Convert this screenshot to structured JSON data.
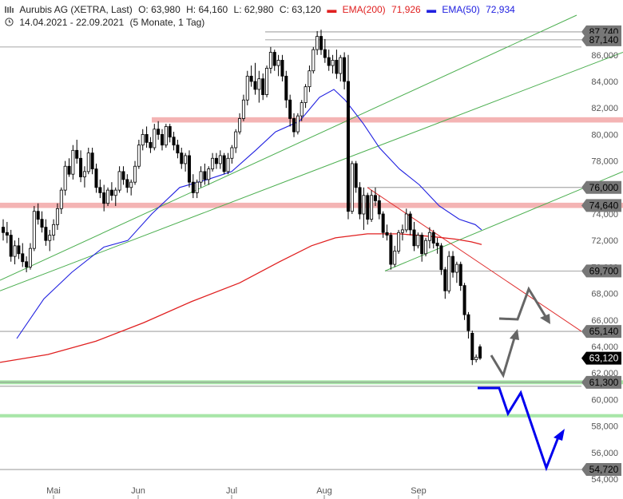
{
  "header": {
    "chart_icon": "candlestick-icon",
    "title": "Aurubis AG (XETRA, Last)",
    "open": "O: 63,980",
    "high": "H: 64,160",
    "low": "L: 62,980",
    "close": "C: 63,120",
    "ema200_label": "EMA(200)",
    "ema200_value": "71,926",
    "ema50_label": "EMA(50)",
    "ema50_value": "72,934",
    "clock_icon": "clock-icon",
    "range": "14.04.2021 - 22.09.2021",
    "period": "(5 Monate, 1 Tag)"
  },
  "colors": {
    "ema200": "#e02020",
    "ema50": "#2020e0",
    "support_zone": "#f4b4b4",
    "support_green": "#a8e6a8",
    "trend_green": "#4caf50",
    "scenario_blue": "#0000ee",
    "scenario_gray": "#666666"
  },
  "chart_data": {
    "type": "candlestick",
    "x_axis_labels": [
      "Mai",
      "Jun",
      "Jul",
      "Aug",
      "Sep"
    ],
    "y_axis_ticks": [
      "54,000",
      "56,000",
      "58,000",
      "60,000",
      "62,000",
      "64,000",
      "66,000",
      "68,000",
      "70,000",
      "72,000",
      "74,000",
      "76,000",
      "78,000",
      "80,000",
      "82,000",
      "84,000",
      "86,000"
    ],
    "ylim": [
      53.6,
      88.3
    ],
    "last_price_tag": "63,120",
    "level_tags": [
      "87,740",
      "87,140",
      "76,000",
      "74,640",
      "69,700",
      "65,140",
      "61,300",
      "54,720"
    ],
    "ohlc": [
      [
        73.0,
        73.6,
        72.0,
        72.6
      ],
      [
        72.6,
        73.4,
        71.8,
        72.4
      ],
      [
        72.4,
        72.8,
        70.4,
        70.8
      ],
      [
        70.8,
        72.0,
        70.2,
        71.6
      ],
      [
        71.6,
        72.2,
        70.6,
        71.0
      ],
      [
        71.0,
        71.8,
        70.0,
        70.4
      ],
      [
        70.4,
        70.8,
        69.6,
        70.0
      ],
      [
        70.0,
        71.8,
        69.8,
        71.4
      ],
      [
        71.4,
        74.6,
        71.2,
        74.2
      ],
      [
        74.2,
        74.8,
        73.2,
        73.6
      ],
      [
        73.6,
        74.2,
        72.6,
        73.0
      ],
      [
        73.0,
        73.6,
        71.6,
        72.0
      ],
      [
        72.0,
        72.8,
        71.2,
        72.4
      ],
      [
        72.4,
        73.6,
        72.0,
        73.2
      ],
      [
        73.2,
        74.8,
        72.8,
        74.4
      ],
      [
        74.4,
        76.0,
        74.0,
        75.8
      ],
      [
        75.8,
        78.0,
        75.4,
        77.6
      ],
      [
        77.6,
        78.2,
        76.8,
        77.0
      ],
      [
        77.0,
        79.2,
        76.6,
        78.8
      ],
      [
        78.8,
        79.6,
        77.8,
        78.2
      ],
      [
        78.2,
        78.8,
        76.4,
        76.8
      ],
      [
        76.8,
        77.6,
        76.0,
        77.2
      ],
      [
        77.2,
        79.0,
        77.0,
        78.6
      ],
      [
        78.6,
        79.0,
        77.0,
        77.4
      ],
      [
        77.4,
        77.8,
        75.6,
        76.0
      ],
      [
        76.0,
        76.6,
        75.2,
        75.6
      ],
      [
        75.6,
        76.2,
        74.2,
        74.8
      ],
      [
        74.8,
        76.0,
        74.6,
        75.8
      ],
      [
        75.8,
        76.4,
        75.0,
        75.4
      ],
      [
        75.4,
        76.0,
        74.6,
        75.8
      ],
      [
        75.8,
        77.6,
        75.6,
        77.2
      ],
      [
        77.2,
        77.6,
        76.2,
        76.6
      ],
      [
        76.6,
        77.0,
        75.6,
        76.0
      ],
      [
        76.0,
        76.6,
        75.4,
        76.4
      ],
      [
        76.4,
        78.0,
        76.2,
        77.6
      ],
      [
        77.6,
        79.6,
        77.4,
        79.2
      ],
      [
        79.2,
        80.4,
        78.8,
        80.0
      ],
      [
        80.0,
        80.6,
        79.0,
        79.4
      ],
      [
        79.4,
        79.8,
        78.6,
        79.0
      ],
      [
        79.0,
        80.8,
        78.8,
        80.4
      ],
      [
        80.4,
        81.0,
        79.6,
        80.0
      ],
      [
        80.0,
        80.4,
        78.8,
        79.2
      ],
      [
        79.2,
        80.8,
        79.0,
        80.6
      ],
      [
        80.6,
        80.8,
        79.4,
        79.8
      ],
      [
        79.8,
        80.2,
        78.8,
        79.2
      ],
      [
        79.2,
        79.6,
        78.2,
        78.6
      ],
      [
        78.6,
        79.0,
        77.4,
        77.8
      ],
      [
        77.8,
        78.6,
        77.2,
        78.4
      ],
      [
        78.4,
        78.8,
        76.0,
        76.4
      ],
      [
        76.4,
        77.0,
        75.2,
        75.6
      ],
      [
        75.6,
        76.6,
        75.2,
        76.4
      ],
      [
        76.4,
        77.6,
        76.0,
        77.2
      ],
      [
        77.2,
        77.8,
        76.2,
        76.6
      ],
      [
        76.6,
        77.6,
        76.2,
        77.4
      ],
      [
        77.4,
        78.6,
        77.2,
        78.2
      ],
      [
        78.2,
        78.6,
        77.4,
        77.8
      ],
      [
        77.8,
        78.8,
        77.4,
        78.4
      ],
      [
        78.4,
        78.6,
        77.0,
        77.2
      ],
      [
        77.2,
        78.6,
        77.0,
        78.2
      ],
      [
        78.2,
        79.2,
        77.8,
        79.0
      ],
      [
        79.0,
        80.4,
        78.6,
        80.2
      ],
      [
        80.2,
        81.6,
        80.0,
        81.2
      ],
      [
        81.2,
        83.0,
        81.0,
        82.6
      ],
      [
        82.6,
        84.8,
        82.2,
        84.4
      ],
      [
        84.4,
        85.2,
        83.6,
        84.0
      ],
      [
        84.0,
        85.4,
        83.0,
        83.4
      ],
      [
        83.4,
        84.8,
        82.4,
        84.2
      ],
      [
        84.2,
        84.6,
        82.6,
        83.0
      ],
      [
        83.0,
        85.2,
        82.8,
        85.0
      ],
      [
        85.0,
        86.6,
        84.6,
        86.2
      ],
      [
        86.2,
        86.4,
        84.8,
        85.2
      ],
      [
        85.2,
        86.0,
        84.4,
        85.6
      ],
      [
        85.6,
        86.0,
        84.0,
        84.4
      ],
      [
        84.4,
        84.8,
        82.0,
        82.6
      ],
      [
        82.6,
        83.0,
        80.6,
        81.2
      ],
      [
        81.2,
        81.6,
        79.8,
        80.2
      ],
      [
        80.2,
        81.6,
        80.0,
        81.4
      ],
      [
        81.4,
        82.6,
        81.0,
        82.4
      ],
      [
        82.4,
        83.8,
        82.0,
        83.6
      ],
      [
        83.6,
        85.2,
        83.2,
        84.8
      ],
      [
        84.8,
        86.6,
        84.6,
        86.4
      ],
      [
        86.4,
        87.8,
        86.0,
        87.4
      ],
      [
        87.4,
        87.9,
        86.0,
        86.4
      ],
      [
        86.4,
        87.2,
        85.4,
        85.8
      ],
      [
        85.8,
        86.4,
        84.8,
        85.2
      ],
      [
        85.2,
        86.0,
        84.6,
        85.6
      ],
      [
        85.6,
        86.4,
        84.2,
        84.6
      ],
      [
        84.6,
        86.0,
        84.0,
        85.8
      ],
      [
        85.8,
        86.2,
        83.4,
        84.0
      ],
      [
        84.0,
        86.0,
        73.6,
        74.2
      ],
      [
        74.2,
        78.0,
        74.0,
        77.8
      ],
      [
        77.8,
        78.0,
        75.6,
        76.0
      ],
      [
        76.0,
        76.4,
        73.6,
        74.0
      ],
      [
        74.0,
        76.0,
        72.8,
        75.4
      ],
      [
        75.4,
        75.6,
        73.2,
        73.6
      ],
      [
        73.6,
        75.8,
        73.4,
        75.4
      ],
      [
        75.4,
        76.0,
        74.6,
        75.0
      ],
      [
        75.0,
        75.4,
        73.6,
        74.0
      ],
      [
        74.0,
        74.2,
        72.2,
        72.6
      ],
      [
        72.6,
        73.2,
        72.0,
        72.4
      ],
      [
        72.4,
        72.6,
        69.8,
        70.2
      ],
      [
        70.2,
        71.6,
        70.0,
        71.2
      ],
      [
        71.2,
        72.8,
        71.0,
        72.6
      ],
      [
        72.6,
        73.2,
        72.0,
        72.8
      ],
      [
        72.8,
        74.4,
        72.6,
        74.0
      ],
      [
        74.0,
        74.2,
        72.4,
        72.8
      ],
      [
        72.8,
        73.4,
        71.2,
        71.6
      ],
      [
        71.6,
        72.6,
        71.4,
        72.4
      ],
      [
        72.4,
        72.6,
        70.4,
        71.0
      ],
      [
        71.0,
        72.2,
        70.8,
        72.0
      ],
      [
        72.0,
        73.0,
        71.4,
        72.6
      ],
      [
        72.6,
        72.8,
        71.4,
        71.8
      ],
      [
        71.8,
        72.2,
        71.0,
        71.6
      ],
      [
        71.6,
        71.8,
        69.4,
        69.8
      ],
      [
        69.8,
        70.0,
        67.6,
        68.2
      ],
      [
        68.2,
        71.2,
        68.0,
        70.8
      ],
      [
        70.8,
        71.2,
        69.2,
        69.6
      ],
      [
        69.6,
        70.4,
        68.8,
        70.2
      ],
      [
        70.2,
        70.4,
        68.2,
        68.6
      ],
      [
        68.6,
        68.8,
        66.0,
        66.4
      ],
      [
        66.4,
        66.6,
        64.6,
        65.2
      ],
      [
        65.0,
        65.2,
        62.6,
        63.0
      ],
      [
        63.0,
        63.4,
        62.8,
        63.2
      ],
      [
        63.98,
        64.16,
        62.98,
        63.12
      ]
    ],
    "ema50": [
      [
        21,
        64.6
      ],
      [
        55,
        67.6
      ],
      [
        90,
        69.6
      ],
      [
        130,
        71.5
      ],
      [
        160,
        72.0
      ],
      [
        190,
        74.0
      ],
      [
        225,
        76.0
      ],
      [
        260,
        76.6
      ],
      [
        290,
        77.2
      ],
      [
        320,
        78.8
      ],
      [
        345,
        80.2
      ],
      [
        375,
        81.0
      ],
      [
        400,
        82.8
      ],
      [
        418,
        83.4
      ],
      [
        432,
        82.6
      ],
      [
        455,
        80.8
      ],
      [
        475,
        79.0
      ],
      [
        500,
        77.4
      ],
      [
        525,
        76.2
      ],
      [
        550,
        74.6
      ],
      [
        575,
        73.6
      ],
      [
        595,
        73.2
      ],
      [
        603,
        72.8
      ]
    ],
    "ema200": [
      [
        0,
        62.8
      ],
      [
        60,
        63.4
      ],
      [
        120,
        64.4
      ],
      [
        180,
        65.8
      ],
      [
        240,
        67.4
      ],
      [
        300,
        68.8
      ],
      [
        350,
        70.4
      ],
      [
        390,
        71.6
      ],
      [
        420,
        72.2
      ],
      [
        460,
        72.5
      ],
      [
        500,
        72.5
      ],
      [
        540,
        72.3
      ],
      [
        570,
        72.1
      ],
      [
        590,
        71.9
      ],
      [
        603,
        71.7
      ]
    ]
  }
}
